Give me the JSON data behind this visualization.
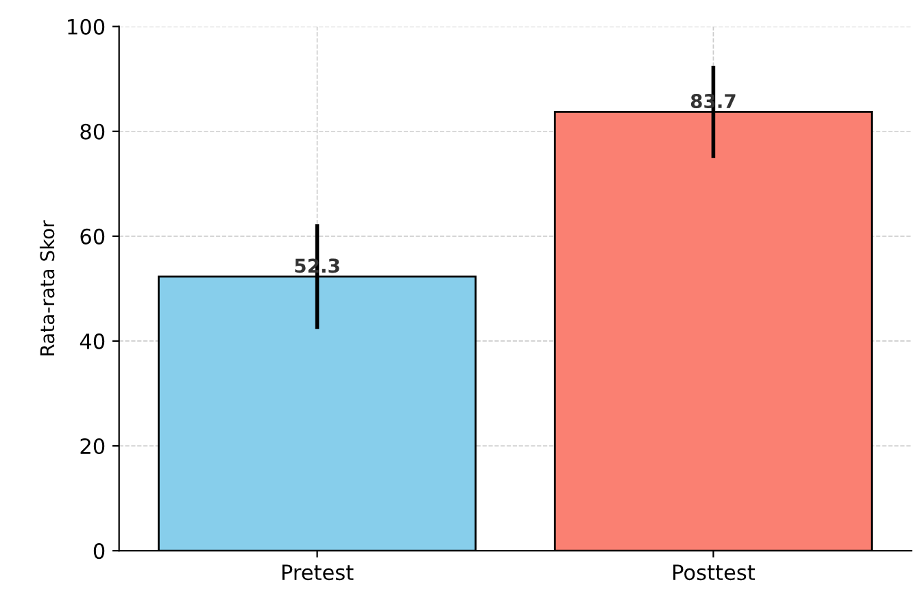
{
  "chart_data": {
    "type": "bar",
    "ylabel": "Rata-rata Skor",
    "categories": [
      "Pretest",
      "Posttest"
    ],
    "values": [
      52.3,
      83.7
    ],
    "colors": [
      "#87ceeb",
      "#fa8072"
    ],
    "errors": [
      10,
      8.8
    ],
    "ylim": [
      0,
      100
    ],
    "yticks": [
      0,
      20,
      40,
      60,
      80,
      100
    ],
    "grid": true,
    "data_labels": true
  }
}
